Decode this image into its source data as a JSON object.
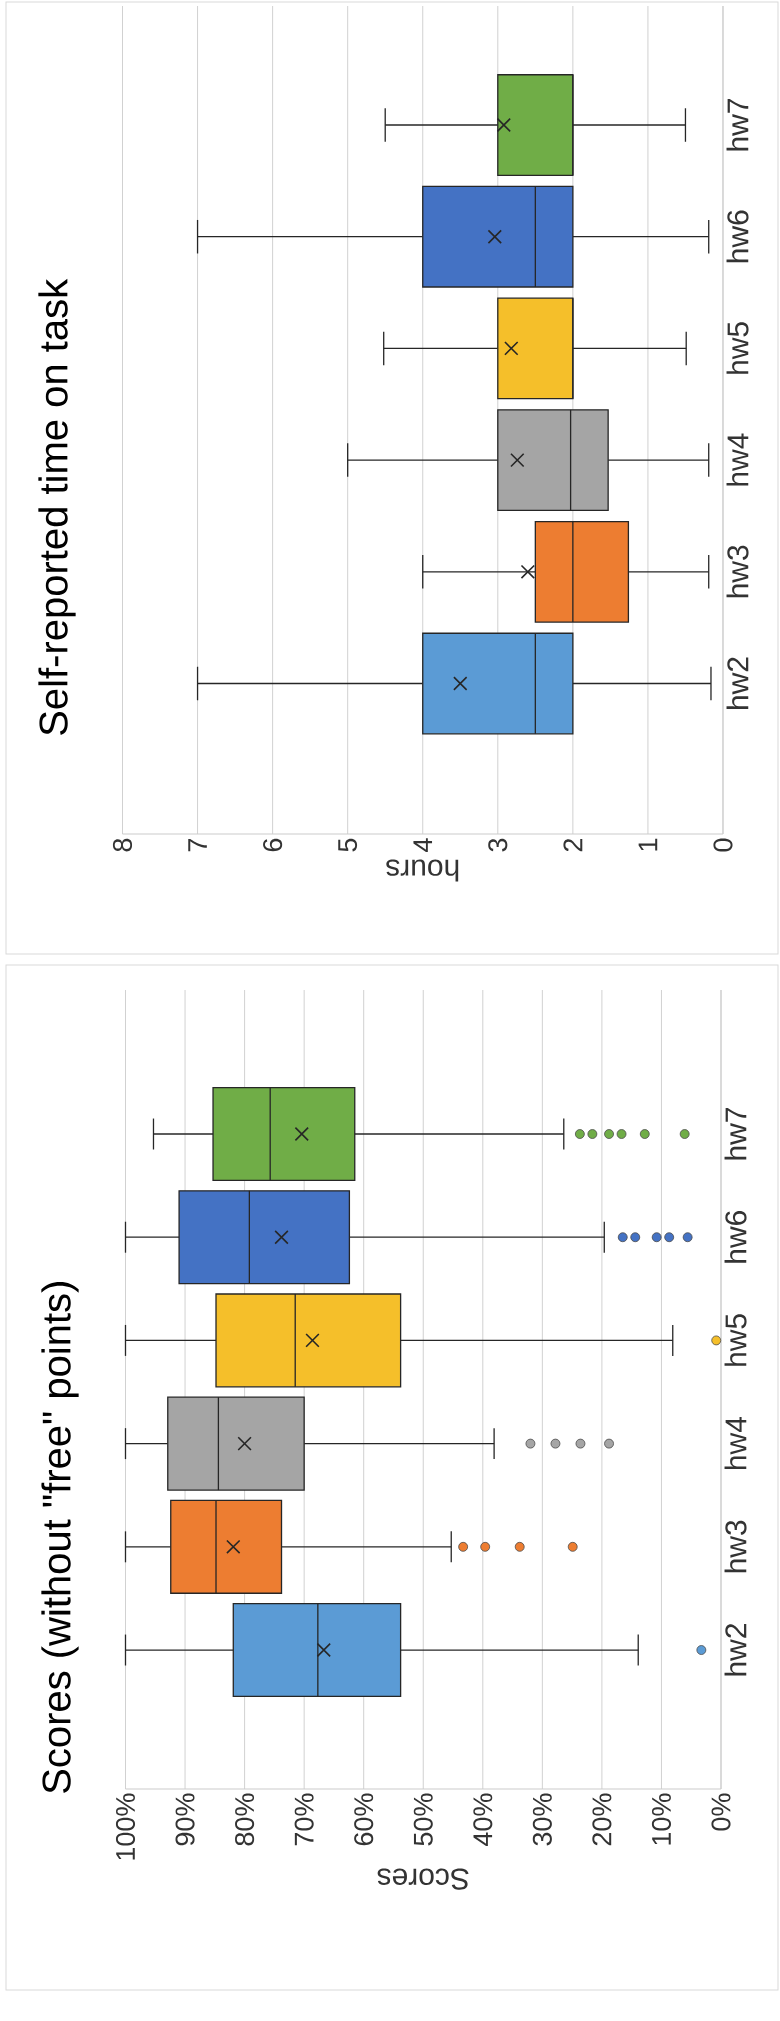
{
  "chart_data": [
    {
      "type": "box",
      "orientation": "horizontal",
      "title": "Scores (without \"free\" points)",
      "xlabel": "Scores",
      "categories": [
        "hw7",
        "hw6",
        "hw5",
        "hw4",
        "hw3",
        "hw2"
      ],
      "colors": [
        "#70ad47",
        "#4472c4",
        "#f5bf2a",
        "#a5a5a5",
        "#ed7d31",
        "#5b9bd5"
      ],
      "boxes": [
        {
          "low": 26.4,
          "q1": 61.5,
          "median": 75.7,
          "q3": 85.3,
          "high": 95.3,
          "mean": 70.4,
          "outliers": [
            23.7,
            21.6,
            18.8,
            16.7,
            12.8,
            6.1
          ]
        },
        {
          "low": 19.6,
          "q1": 62.4,
          "median": 79.2,
          "q3": 91.0,
          "high": 100,
          "mean": 73.8,
          "outliers": [
            16.5,
            14.4,
            10.8,
            8.7,
            5.6
          ]
        },
        {
          "low": 8.1,
          "q1": 53.8,
          "median": 71.5,
          "q3": 84.8,
          "high": 100,
          "mean": 68.6,
          "outliers": [
            0.8
          ]
        },
        {
          "low": 38.1,
          "q1": 70.0,
          "median": 84.4,
          "q3": 92.9,
          "high": 100,
          "mean": 80.0,
          "outliers": [
            32.0,
            27.8,
            23.6,
            18.8
          ]
        },
        {
          "low": 45.3,
          "q1": 73.8,
          "median": 84.8,
          "q3": 92.4,
          "high": 100,
          "mean": 81.9,
          "outliers": [
            43.3,
            39.6,
            33.8,
            24.9
          ]
        },
        {
          "low": 13.9,
          "q1": 53.8,
          "median": 67.7,
          "q3": 81.9,
          "high": 100,
          "mean": 66.7,
          "outliers": [
            3.3
          ]
        }
      ],
      "xlim": [
        100,
        0
      ],
      "xticks": [
        {
          "value": 0,
          "label": "0%"
        },
        {
          "value": 10,
          "label": "10%"
        },
        {
          "value": 20,
          "label": "20%"
        },
        {
          "value": 30,
          "label": "30%"
        },
        {
          "value": 40,
          "label": "40%"
        },
        {
          "value": 50,
          "label": "50%"
        },
        {
          "value": 60,
          "label": "60%"
        },
        {
          "value": 70,
          "label": "70%"
        },
        {
          "value": 80,
          "label": "80%"
        },
        {
          "value": 90,
          "label": "90%"
        },
        {
          "value": 100,
          "label": "100%"
        }
      ],
      "grid": "x"
    },
    {
      "type": "box",
      "orientation": "horizontal",
      "title": "Self-reported time on task",
      "xlabel": "hours",
      "categories": [
        "hw7",
        "hw6",
        "hw5",
        "hw4",
        "hw3",
        "hw2"
      ],
      "colors": [
        "#70ad47",
        "#4472c4",
        "#f5bf2a",
        "#a5a5a5",
        "#ed7d31",
        "#5b9bd5"
      ],
      "boxes": [
        {
          "low": 0.5,
          "q1": 2.0,
          "median": 2.0,
          "q3": 3.0,
          "high": 4.5,
          "mean": 2.92
        },
        {
          "low": 0.19,
          "q1": 2.0,
          "median": 2.5,
          "q3": 4.0,
          "high": 7.0,
          "mean": 3.04
        },
        {
          "low": 0.49,
          "q1": 2.0,
          "median": 2.0,
          "q3": 3.0,
          "high": 4.52,
          "mean": 2.82
        },
        {
          "low": 0.19,
          "q1": 1.53,
          "median": 2.03,
          "q3": 3.0,
          "high": 5.0,
          "mean": 2.74
        },
        {
          "low": 0.19,
          "q1": 1.26,
          "median": 2.0,
          "q3": 2.5,
          "high": 4.0,
          "mean": 2.6
        },
        {
          "low": 0.16,
          "q1": 2.0,
          "median": 2.5,
          "q3": 4.0,
          "high": 7.0,
          "mean": 3.5
        }
      ],
      "xlim": [
        8,
        0
      ],
      "xticks": [
        0,
        1,
        2,
        3,
        4,
        5,
        6,
        7,
        8
      ],
      "grid": "x"
    }
  ]
}
